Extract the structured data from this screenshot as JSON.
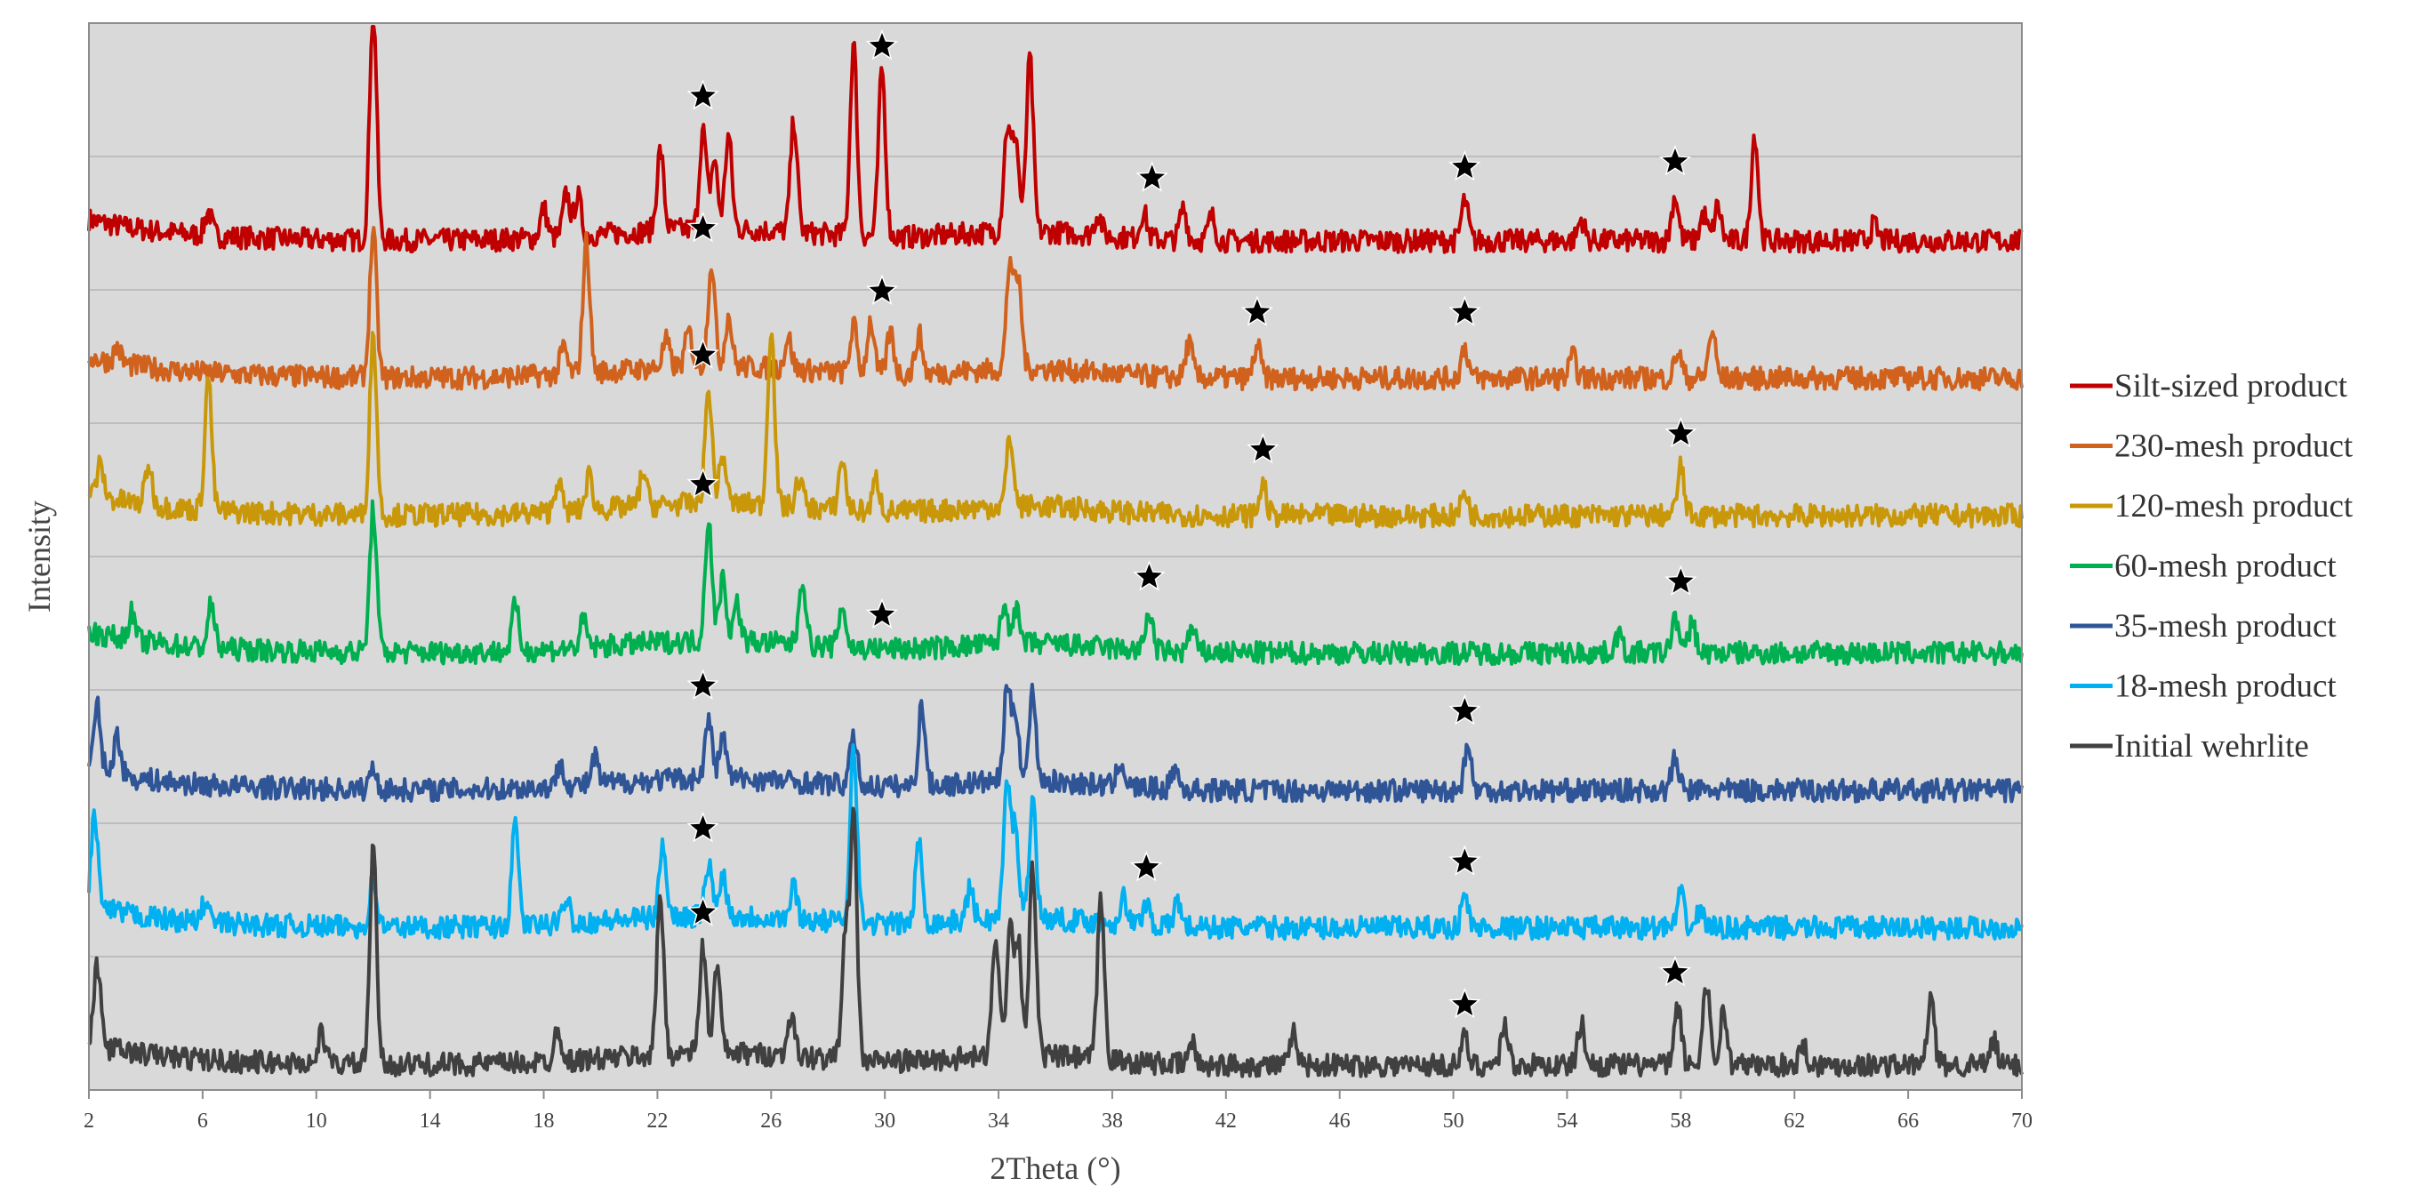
{
  "chart_data": {
    "type": "line",
    "xlabel": "2Theta (°)",
    "ylabel": "Intensity",
    "xlim": [
      2,
      70
    ],
    "x_ticks": [
      "2",
      "6",
      "10",
      "14",
      "18",
      "22",
      "26",
      "30",
      "34",
      "38",
      "42",
      "46",
      "50",
      "54",
      "58",
      "62",
      "66",
      "70"
    ],
    "grid": "horizontal",
    "legend_position": "right",
    "colors": {
      "plot_background": "#d9d9d9",
      "gridline": "#bdbdbd",
      "star_marker": "#000000"
    },
    "series": [
      {
        "name": "Silt-sized product",
        "color": "#c00000",
        "peaks": [
          [
            6.2,
            0.9
          ],
          [
            12.0,
            9.0
          ],
          [
            18.0,
            1.1
          ],
          [
            18.8,
            1.6
          ],
          [
            19.2,
            1.5
          ],
          [
            22.1,
            3.0
          ],
          [
            23.6,
            3.7
          ],
          [
            24.0,
            2.6
          ],
          [
            24.5,
            3.5
          ],
          [
            26.8,
            4.2
          ],
          [
            28.9,
            7.2
          ],
          [
            29.9,
            6.3
          ],
          [
            34.3,
            3.8
          ],
          [
            34.6,
            3.5
          ],
          [
            35.1,
            6.5
          ],
          [
            37.5,
            0.8
          ],
          [
            39.1,
            1.0
          ],
          [
            40.5,
            1.2
          ],
          [
            41.5,
            0.9
          ],
          [
            50.4,
            1.5
          ],
          [
            54.5,
            0.8
          ],
          [
            57.8,
            1.7
          ],
          [
            58.8,
            1.0
          ],
          [
            59.3,
            1.3
          ],
          [
            60.6,
            4.0
          ],
          [
            64.8,
            0.6
          ]
        ],
        "stars": [
          23.6,
          29.9,
          39.4,
          50.4,
          57.8
        ]
      },
      {
        "name": "230-mesh product",
        "color": "#d0621e",
        "peaks": [
          [
            3.0,
            0.6
          ],
          [
            12.0,
            5.5
          ],
          [
            18.7,
            1.0
          ],
          [
            19.5,
            4.9
          ],
          [
            22.3,
            1.0
          ],
          [
            23.1,
            1.3
          ],
          [
            23.9,
            3.9
          ],
          [
            24.5,
            1.9
          ],
          [
            26.6,
            1.2
          ],
          [
            28.9,
            1.8
          ],
          [
            29.5,
            2.0
          ],
          [
            30.2,
            1.6
          ],
          [
            31.2,
            1.5
          ],
          [
            34.4,
            4.0
          ],
          [
            34.7,
            3.2
          ],
          [
            40.7,
            1.3
          ],
          [
            43.1,
            1.2
          ],
          [
            50.4,
            1.2
          ],
          [
            54.2,
            0.8
          ],
          [
            57.9,
            1.0
          ],
          [
            59.1,
            1.8
          ]
        ],
        "stars": [
          23.6,
          29.9,
          43.1,
          50.4
        ]
      },
      {
        "name": "120-mesh product",
        "color": "#c9980a",
        "peaks": [
          [
            2.4,
            1.2
          ],
          [
            4.1,
            1.5
          ],
          [
            6.2,
            5.0
          ],
          [
            12.0,
            6.8
          ],
          [
            18.5,
            1.2
          ],
          [
            19.6,
            1.3
          ],
          [
            21.5,
            1.3
          ],
          [
            23.8,
            4.3
          ],
          [
            24.3,
            1.8
          ],
          [
            26.0,
            6.7
          ],
          [
            27.0,
            1.1
          ],
          [
            28.5,
            1.9
          ],
          [
            29.7,
            1.2
          ],
          [
            34.4,
            2.6
          ],
          [
            43.3,
            1.2
          ],
          [
            50.4,
            0.9
          ],
          [
            58.0,
            1.8
          ]
        ],
        "stars": [
          23.6,
          43.3,
          58.0
        ]
      },
      {
        "name": "60-mesh product",
        "color": "#00b050",
        "peaks": [
          [
            3.5,
            1.0
          ],
          [
            6.3,
            1.6
          ],
          [
            12.0,
            5.4
          ],
          [
            17.0,
            1.7
          ],
          [
            19.4,
            1.0
          ],
          [
            23.8,
            4.6
          ],
          [
            24.3,
            2.4
          ],
          [
            24.8,
            1.4
          ],
          [
            27.1,
            2.5
          ],
          [
            28.5,
            1.6
          ],
          [
            34.2,
            1.4
          ],
          [
            34.6,
            1.3
          ],
          [
            39.3,
            1.5
          ],
          [
            40.8,
            0.9
          ],
          [
            55.8,
            0.7
          ],
          [
            57.8,
            1.4
          ],
          [
            58.4,
            1.2
          ]
        ],
        "stars": [
          23.6,
          29.9,
          39.3,
          58.0
        ]
      },
      {
        "name": "35-mesh product",
        "color": "#2f5597",
        "peaks": [
          [
            2.3,
            2.4
          ],
          [
            3.0,
            1.5
          ],
          [
            12.0,
            0.8
          ],
          [
            18.6,
            0.9
          ],
          [
            19.8,
            1.0
          ],
          [
            23.8,
            2.2
          ],
          [
            24.3,
            1.6
          ],
          [
            28.9,
            1.9
          ],
          [
            31.3,
            3.0
          ],
          [
            34.3,
            3.4
          ],
          [
            34.6,
            2.6
          ],
          [
            35.2,
            3.3
          ],
          [
            38.3,
            1.0
          ],
          [
            40.2,
            0.8
          ],
          [
            50.5,
            1.7
          ],
          [
            57.8,
            1.2
          ]
        ],
        "stars": [
          23.6,
          50.4
        ]
      },
      {
        "name": "18-mesh product",
        "color": "#00b0f0",
        "peaks": [
          [
            2.2,
            3.5
          ],
          [
            6.1,
            0.8
          ],
          [
            12.0,
            1.8
          ],
          [
            17.0,
            3.8
          ],
          [
            18.8,
            1.0
          ],
          [
            22.2,
            2.8
          ],
          [
            23.8,
            2.0
          ],
          [
            24.3,
            1.6
          ],
          [
            26.8,
            1.2
          ],
          [
            28.9,
            6.8
          ],
          [
            31.2,
            3.0
          ],
          [
            33.0,
            1.2
          ],
          [
            34.3,
            5.0
          ],
          [
            34.6,
            3.3
          ],
          [
            35.2,
            4.5
          ],
          [
            38.4,
            1.0
          ],
          [
            39.2,
            0.9
          ],
          [
            40.3,
            1.0
          ],
          [
            50.4,
            1.2
          ],
          [
            58.0,
            1.2
          ],
          [
            58.7,
            0.7
          ]
        ],
        "stars": [
          23.6,
          39.2,
          50.4
        ]
      },
      {
        "name": "Initial wehrlite",
        "color": "#404040",
        "peaks": [
          [
            2.3,
            3.0
          ],
          [
            10.2,
            1.2
          ],
          [
            12.0,
            8.0
          ],
          [
            18.5,
            1.3
          ],
          [
            22.1,
            6.0
          ],
          [
            23.6,
            4.0
          ],
          [
            24.1,
            3.2
          ],
          [
            26.7,
            1.6
          ],
          [
            28.6,
            4.6
          ],
          [
            28.9,
            9.0
          ],
          [
            33.9,
            4.6
          ],
          [
            34.4,
            4.8
          ],
          [
            34.7,
            4.2
          ],
          [
            35.2,
            7.0
          ],
          [
            37.6,
            6.0
          ],
          [
            40.8,
            0.8
          ],
          [
            44.4,
            1.2
          ],
          [
            50.4,
            1.0
          ],
          [
            51.8,
            1.6
          ],
          [
            54.5,
            1.6
          ],
          [
            57.9,
            2.2
          ],
          [
            58.9,
            3.1
          ],
          [
            59.5,
            2.0
          ],
          [
            62.3,
            0.8
          ],
          [
            66.8,
            2.5
          ],
          [
            69.0,
            0.9
          ]
        ],
        "stars": [
          23.6,
          50.4,
          57.8
        ]
      }
    ]
  }
}
